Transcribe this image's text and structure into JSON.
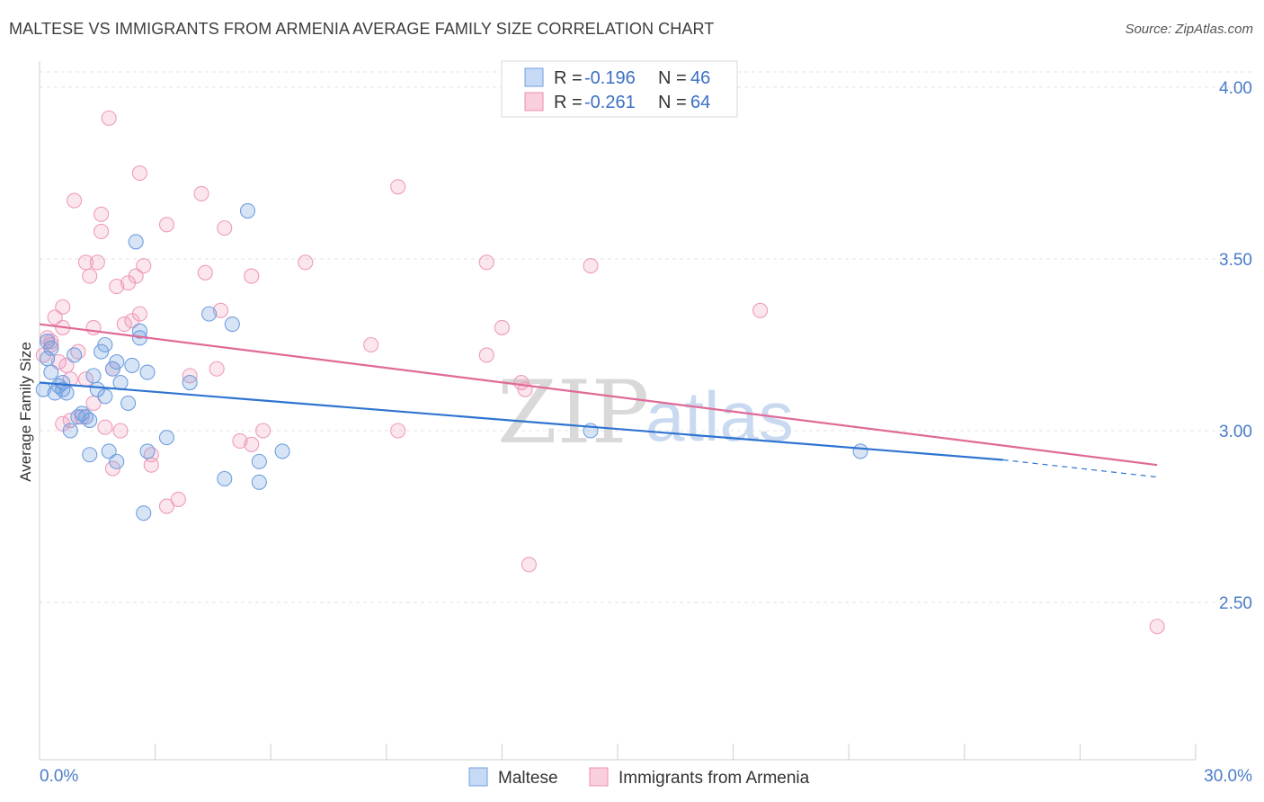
{
  "title": "MALTESE VS IMMIGRANTS FROM ARMENIA AVERAGE FAMILY SIZE CORRELATION CHART",
  "source": "Source: ZipAtlas.com",
  "watermark": {
    "zip": "ZIP",
    "atlas": "atlas"
  },
  "legend": {
    "r_label": "R =",
    "n_label": "N =",
    "items": [
      {
        "name": "Maltese",
        "r": "-0.196",
        "n": "46",
        "color": "#6f9fe0"
      },
      {
        "name": "Immigrants from Armenia",
        "r": "-0.261",
        "n": "64",
        "color": "#ef8fb0"
      }
    ]
  },
  "chart_data": {
    "type": "scatter",
    "title": "MALTESE VS IMMIGRANTS FROM ARMENIA AVERAGE FAMILY SIZE CORRELATION CHART",
    "xlabel": "",
    "ylabel": "Average Family Size",
    "xlim": [
      0,
      30
    ],
    "ylim": [
      2.0,
      4.05
    ],
    "x_tick_labels": [
      "0.0%",
      "30.0%"
    ],
    "y_ticks": [
      2.5,
      3.0,
      3.5,
      4.0
    ],
    "y_tick_labels": [
      "2.50",
      "3.00",
      "3.50",
      "4.00"
    ],
    "grid": true,
    "legend_position": "top-center",
    "series": [
      {
        "name": "Maltese",
        "color": "#6f9fe0",
        "line_color": "#2f74d0",
        "trend": {
          "x0": 0,
          "y0": 3.14,
          "x1": 25.0,
          "y1": 2.915,
          "dash_to_x": 29.0,
          "dash_to_y": 2.865
        },
        "points": [
          [
            0.1,
            3.12
          ],
          [
            0.2,
            3.21
          ],
          [
            0.3,
            3.17
          ],
          [
            0.3,
            3.24
          ],
          [
            0.4,
            3.11
          ],
          [
            0.5,
            3.13
          ],
          [
            0.6,
            3.12
          ],
          [
            0.6,
            3.14
          ],
          [
            0.7,
            3.11
          ],
          [
            0.8,
            3.0
          ],
          [
            0.9,
            3.22
          ],
          [
            1.0,
            3.04
          ],
          [
            1.1,
            3.05
          ],
          [
            1.2,
            3.04
          ],
          [
            1.3,
            3.03
          ],
          [
            1.3,
            2.93
          ],
          [
            1.4,
            3.16
          ],
          [
            1.5,
            3.12
          ],
          [
            1.6,
            3.23
          ],
          [
            1.7,
            3.25
          ],
          [
            1.7,
            3.1
          ],
          [
            1.8,
            2.94
          ],
          [
            1.9,
            3.18
          ],
          [
            2.0,
            2.91
          ],
          [
            2.0,
            3.2
          ],
          [
            2.1,
            3.14
          ],
          [
            2.3,
            3.08
          ],
          [
            2.4,
            3.19
          ],
          [
            2.5,
            3.55
          ],
          [
            2.6,
            3.27
          ],
          [
            2.6,
            3.29
          ],
          [
            2.8,
            3.17
          ],
          [
            2.8,
            2.94
          ],
          [
            2.7,
            2.76
          ],
          [
            3.3,
            2.98
          ],
          [
            3.9,
            3.14
          ],
          [
            4.4,
            3.34
          ],
          [
            4.8,
            2.86
          ],
          [
            5.0,
            3.31
          ],
          [
            5.4,
            3.64
          ],
          [
            5.7,
            2.85
          ],
          [
            5.7,
            2.91
          ],
          [
            6.3,
            2.94
          ],
          [
            14.3,
            3.0
          ],
          [
            21.3,
            2.94
          ],
          [
            0.2,
            3.26
          ]
        ]
      },
      {
        "name": "Immigrants from Armenia",
        "color": "#ef8fb0",
        "line_color": "#e06a97",
        "trend": {
          "x0": 0,
          "y0": 3.31,
          "x1": 29.0,
          "y1": 2.9
        },
        "points": [
          [
            0.1,
            3.22
          ],
          [
            0.2,
            3.27
          ],
          [
            0.3,
            3.26
          ],
          [
            0.3,
            3.25
          ],
          [
            0.4,
            3.33
          ],
          [
            0.5,
            3.2
          ],
          [
            0.6,
            3.36
          ],
          [
            0.6,
            3.02
          ],
          [
            0.7,
            3.19
          ],
          [
            0.8,
            3.03
          ],
          [
            0.8,
            3.15
          ],
          [
            0.9,
            3.67
          ],
          [
            1.0,
            3.23
          ],
          [
            1.1,
            3.04
          ],
          [
            1.2,
            3.15
          ],
          [
            1.2,
            3.49
          ],
          [
            1.3,
            3.45
          ],
          [
            1.4,
            3.08
          ],
          [
            1.4,
            3.3
          ],
          [
            1.5,
            3.49
          ],
          [
            1.6,
            3.63
          ],
          [
            1.6,
            3.58
          ],
          [
            1.7,
            3.01
          ],
          [
            1.8,
            3.91
          ],
          [
            1.9,
            3.18
          ],
          [
            2.0,
            3.42
          ],
          [
            2.1,
            3.0
          ],
          [
            2.2,
            3.31
          ],
          [
            2.3,
            3.43
          ],
          [
            2.4,
            3.32
          ],
          [
            2.5,
            3.45
          ],
          [
            2.6,
            3.34
          ],
          [
            2.6,
            3.75
          ],
          [
            2.7,
            3.48
          ],
          [
            2.9,
            2.9
          ],
          [
            2.9,
            2.93
          ],
          [
            3.3,
            2.78
          ],
          [
            3.3,
            3.6
          ],
          [
            3.6,
            2.8
          ],
          [
            3.9,
            3.16
          ],
          [
            4.2,
            3.69
          ],
          [
            4.3,
            3.46
          ],
          [
            4.6,
            3.18
          ],
          [
            4.7,
            3.35
          ],
          [
            4.8,
            3.59
          ],
          [
            5.2,
            2.97
          ],
          [
            5.5,
            2.96
          ],
          [
            5.5,
            3.45
          ],
          [
            5.8,
            3.0
          ],
          [
            6.9,
            3.49
          ],
          [
            8.6,
            3.25
          ],
          [
            9.3,
            3.71
          ],
          [
            9.3,
            3.0
          ],
          [
            11.6,
            3.49
          ],
          [
            11.6,
            3.22
          ],
          [
            12.0,
            3.3
          ],
          [
            12.5,
            3.14
          ],
          [
            12.6,
            3.12
          ],
          [
            12.7,
            2.61
          ],
          [
            14.3,
            3.48
          ],
          [
            18.7,
            3.35
          ],
          [
            29.0,
            2.43
          ],
          [
            1.9,
            2.89
          ],
          [
            0.6,
            3.3
          ]
        ]
      }
    ]
  }
}
